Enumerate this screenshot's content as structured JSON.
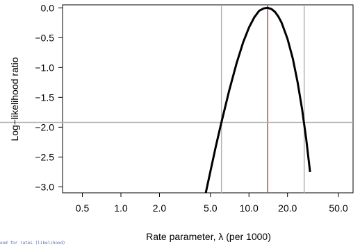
{
  "chart_data": {
    "type": "line",
    "xlabel": "Rate parameter, λ (per 1000)",
    "ylabel": "Log−likelihood ratio",
    "x_scale": "log",
    "xlim": [
      0.35,
      65
    ],
    "ylim": [
      -3.1,
      0.05
    ],
    "x_ticks": [
      0.5,
      1.0,
      2.0,
      5.0,
      10.0,
      20.0,
      50.0
    ],
    "x_tick_labels": [
      "0.5",
      "1.0",
      "2.0",
      "5.0",
      "10.0",
      "20.0",
      "50.0"
    ],
    "y_ticks": [
      0.0,
      -0.5,
      -1.0,
      -1.5,
      -2.0,
      -2.5,
      -3.0
    ],
    "y_tick_labels": [
      "0.0",
      "−0.5",
      "−1.0",
      "−1.5",
      "−2.0",
      "−2.5",
      "−3.0"
    ],
    "grid": false,
    "series": [
      {
        "color": "#000000",
        "x": [
          4.6,
          5.0,
          5.5,
          6.0,
          7.0,
          8.0,
          9.0,
          10.0,
          11.0,
          12.0,
          13.0,
          14.0,
          15.0,
          16.0,
          17.0,
          18.0,
          20.0,
          22.0,
          24.0,
          26.0,
          28.0,
          30.0
        ],
        "y": [
          -3.1,
          -2.74,
          -2.33,
          -1.98,
          -1.39,
          -0.93,
          -0.58,
          -0.33,
          -0.16,
          -0.05,
          -0.01,
          0.0,
          -0.02,
          -0.07,
          -0.15,
          -0.25,
          -0.52,
          -0.85,
          -1.25,
          -1.7,
          -2.2,
          -2.75
        ]
      }
    ],
    "reference_lines": [
      {
        "orientation": "vertical",
        "x": 14.0,
        "color": "#d93b3b"
      },
      {
        "orientation": "vertical",
        "x": 6.1,
        "color": "#b3b3b3"
      },
      {
        "orientation": "vertical",
        "x": 27.0,
        "color": "#b3b3b3"
      },
      {
        "orientation": "horizontal",
        "y": -1.92,
        "color": "#b3b3b3"
      }
    ]
  },
  "footnote": "ood for rates (likelihood)"
}
